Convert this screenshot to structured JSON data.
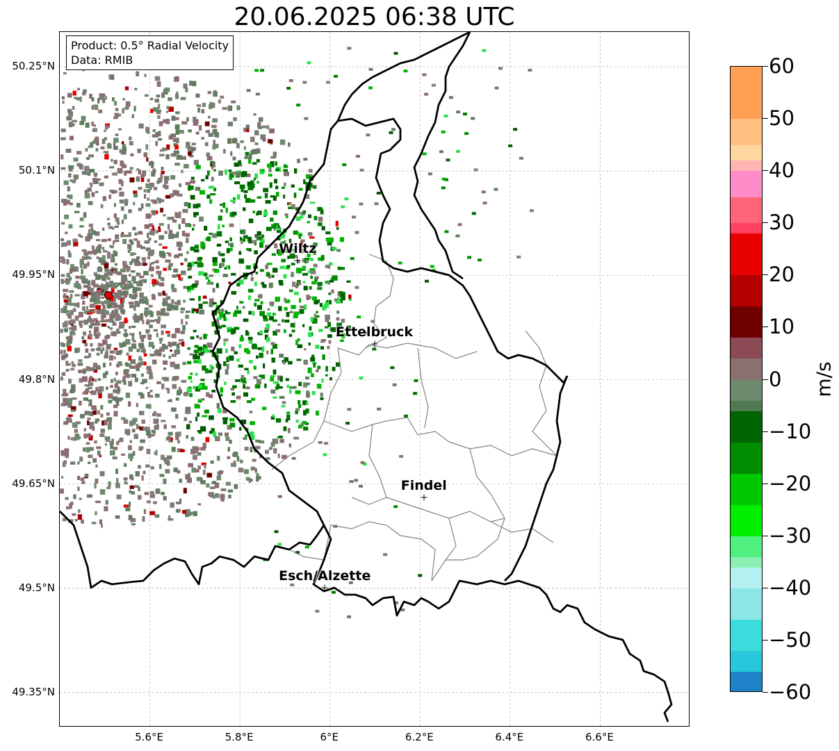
{
  "title": "20.06.2025 06:38 UTC",
  "info_box": {
    "product": "Product: 0.5° Radial Velocity",
    "data": "Data: RMIB"
  },
  "map": {
    "lat_labels": [
      "50.25°N",
      "50.1°N",
      "49.95°N",
      "49.8°N",
      "49.65°N",
      "49.5°N",
      "49.35°N"
    ],
    "lat_values": [
      50.25,
      50.1,
      49.95,
      49.8,
      49.65,
      49.5,
      49.35
    ],
    "lon_labels": [
      "5.6°E",
      "5.8°E",
      "6°E",
      "6.2°E",
      "6.4°E",
      "6.6°E"
    ],
    "lon_values": [
      5.6,
      5.8,
      6.0,
      6.2,
      6.4,
      6.6
    ],
    "extent": {
      "lon_min": 5.4,
      "lon_max": 6.8,
      "lat_min": 49.3,
      "lat_max": 50.3
    },
    "gridlines": "dashed",
    "cities": [
      {
        "name": "Wiltz",
        "lon": 5.93,
        "lat": 49.97
      },
      {
        "name": "Ettelbruck",
        "lon": 6.1,
        "lat": 49.85
      },
      {
        "name": "Findel",
        "lon": 6.21,
        "lat": 49.63
      },
      {
        "name": "Esch/Alzette",
        "lon": 5.99,
        "lat": 49.5
      }
    ],
    "radar_site": {
      "lon": 5.51,
      "lat": 49.92,
      "color": "#e00000"
    }
  },
  "colorbar": {
    "unit": "m/s",
    "min": -60,
    "max": 60,
    "tick_labels": [
      "60",
      "50",
      "40",
      "30",
      "20",
      "10",
      "0",
      "−10",
      "−20",
      "−30",
      "−40",
      "−50",
      "−60"
    ],
    "tick_values": [
      60,
      50,
      40,
      30,
      20,
      10,
      0,
      -10,
      -20,
      -30,
      -40,
      -50,
      -60
    ],
    "stops": [
      {
        "from": 50,
        "to": 60,
        "color": "#ffa055"
      },
      {
        "from": 45,
        "to": 50,
        "color": "#ffc080"
      },
      {
        "from": 42,
        "to": 45,
        "color": "#ffd6a0"
      },
      {
        "from": 40,
        "to": 42,
        "color": "#ffb4b4"
      },
      {
        "from": 35,
        "to": 40,
        "color": "#ff8cc8"
      },
      {
        "from": 30,
        "to": 35,
        "color": "#ff6478"
      },
      {
        "from": 28,
        "to": 30,
        "color": "#ff4060"
      },
      {
        "from": 20,
        "to": 28,
        "color": "#e80000"
      },
      {
        "from": 14,
        "to": 20,
        "color": "#b40000"
      },
      {
        "from": 8,
        "to": 14,
        "color": "#700000"
      },
      {
        "from": 4,
        "to": 8,
        "color": "#8c4a55"
      },
      {
        "from": 0,
        "to": 4,
        "color": "#8a7070"
      },
      {
        "from": -4,
        "to": 0,
        "color": "#6e8a6e"
      },
      {
        "from": -6,
        "to": -4,
        "color": "#507a50"
      },
      {
        "from": -12,
        "to": -6,
        "color": "#006400"
      },
      {
        "from": -18,
        "to": -12,
        "color": "#008c00"
      },
      {
        "from": -24,
        "to": -18,
        "color": "#00c800"
      },
      {
        "from": -30,
        "to": -24,
        "color": "#00f000"
      },
      {
        "from": -34,
        "to": -30,
        "color": "#50f080"
      },
      {
        "from": -36,
        "to": -34,
        "color": "#8cf0b4"
      },
      {
        "from": -40,
        "to": -36,
        "color": "#b4f0f0"
      },
      {
        "from": -46,
        "to": -40,
        "color": "#8ce6e6"
      },
      {
        "from": -52,
        "to": -46,
        "color": "#3cdcdc"
      },
      {
        "from": -56,
        "to": -52,
        "color": "#28c8dc"
      },
      {
        "from": -60,
        "to": -56,
        "color": "#1e82c8"
      }
    ]
  }
}
